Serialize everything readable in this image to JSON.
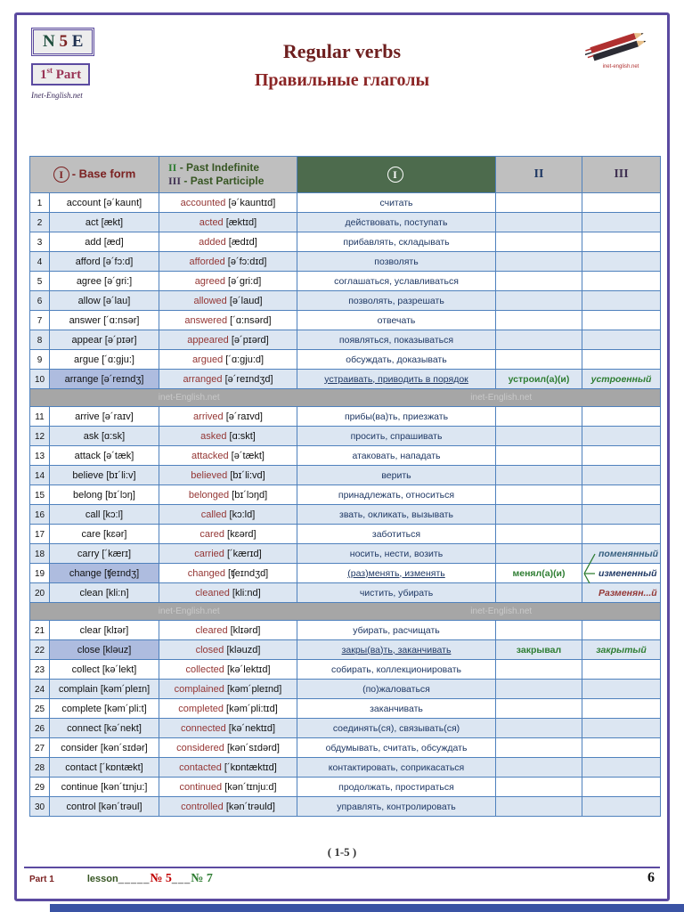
{
  "header": {
    "badge_code": {
      "n": "N",
      "num": "5",
      "e": "E"
    },
    "badge_part": {
      "num": "1",
      "sup": "st",
      "word": "Part"
    },
    "signature": "Inet-English.net",
    "title_en": "Regular verbs",
    "title_ru": "Правильные глаголы"
  },
  "table": {
    "header": {
      "col1_symbol": "I",
      "col1_label": "- Base form",
      "col2_line1_num": "II",
      "col2_line1_text": "- Past Indefinite",
      "col2_line2_num": "III",
      "col2_line2_text": "- Past Participle",
      "col3_symbol": "I",
      "col4": "II",
      "col5": "III"
    },
    "separator_text": "inet-English.net",
    "rows": [
      {
        "n": 1,
        "base": "account",
        "btr": "[ə´kaunt]",
        "past": "accounted",
        "ptr": "[ə´kauntɪd]",
        "ru": "считать"
      },
      {
        "n": 2,
        "base": "act",
        "btr": "[ækt]",
        "past": "acted",
        "ptr": "[æktɪd]",
        "ru": "действовать, поступать"
      },
      {
        "n": 3,
        "base": "add",
        "btr": "[æd]",
        "past": "added",
        "ptr": "[ædɪd]",
        "ru": "прибавлять, складывать"
      },
      {
        "n": 4,
        "base": "afford",
        "btr": "[ə´fɔ:d]",
        "past": "afforded",
        "ptr": "[ə´fɔ:dɪd]",
        "ru": "позволять"
      },
      {
        "n": 5,
        "base": "agree",
        "btr": "[ə´gri:]",
        "past": "agreed",
        "ptr": "[ə´gri:d]",
        "ru": "соглашаться, уславливаться"
      },
      {
        "n": 6,
        "base": "allow",
        "btr": "[ə´lau]",
        "past": "allowed",
        "ptr": "[ə´laud]",
        "ru": "позволять, разрешать"
      },
      {
        "n": 7,
        "base": "answer",
        "btr": "[´ɑ:nsər]",
        "past": "answered",
        "ptr": "[´ɑ:nsərd]",
        "ru": "отвечать"
      },
      {
        "n": 8,
        "base": "appear",
        "btr": "[ə´pɪər]",
        "past": "appeared",
        "ptr": "[ə´pɪərd]",
        "ru": "появляться, показываться"
      },
      {
        "n": 9,
        "base": "argue",
        "btr": "[´ɑ:gju:]",
        "past": "argued",
        "ptr": "[´ɑ:gju:d]",
        "ru": "обсуждать, доказывать"
      },
      {
        "n": 10,
        "base": "arrange",
        "btr": "[ə´reɪndʒ]",
        "past": "arranged",
        "ptr": "[ə´reɪndʒd]",
        "ru": "устраивать, приводить в порядок",
        "ru_u": true,
        "hl": true,
        "ii": "устроил(а)(и)",
        "iii": "устроенный",
        "iii_class": "part-green"
      },
      {
        "sep": true
      },
      {
        "n": 11,
        "base": "arrive",
        "btr": "[ə´raɪv]",
        "past": "arrived",
        "ptr": "[ə´raɪvd]",
        "ru": "прибы(ва)ть, приезжать"
      },
      {
        "n": 12,
        "base": "ask",
        "btr": "[ɑ:sk]",
        "past": "asked",
        "ptr": "[ɑ:skt]",
        "ru": "просить, спрашивать"
      },
      {
        "n": 13,
        "base": "attack",
        "btr": "[ə´tæk]",
        "past": "attacked",
        "ptr": "[ə´tækt]",
        "ru": "атаковать, нападать"
      },
      {
        "n": 14,
        "base": "believe",
        "btr": "[bɪ´li:v]",
        "past": "believed",
        "ptr": "[bɪ´li:vd]",
        "ru": "верить"
      },
      {
        "n": 15,
        "base": "belong",
        "btr": "[bɪ´lɔŋ]",
        "past": "belonged",
        "ptr": "[bɪ´lɔŋd]",
        "ru": "принадлежать, относиться"
      },
      {
        "n": 16,
        "base": "call",
        "btr": "[kɔ:l]",
        "past": "called",
        "ptr": "[kɔ:ld]",
        "ru": "звать, окликать, вызывать"
      },
      {
        "n": 17,
        "base": "care",
        "btr": "[kɛər]",
        "past": "cared",
        "ptr": "[kɛərd]",
        "ru": "заботиться"
      },
      {
        "n": 18,
        "base": "carry",
        "btr": "[´kærɪ]",
        "past": "carried",
        "ptr": "[´kærɪd]",
        "ru": "носить, нести, возить",
        "iii": "поменянный",
        "iii_class": "part-a",
        "pad": true
      },
      {
        "n": 19,
        "base": "change",
        "btr": "[ʧeɪndʒ]",
        "past": "changed",
        "ptr": "[ʧeɪndʒd]",
        "ru": "(раз)менять, изменять",
        "ru_u": true,
        "hl": true,
        "ii": "менял(а)(и)",
        "iii": "измененный",
        "iii_class": "part-b",
        "pad": true,
        "brace": true
      },
      {
        "n": 20,
        "base": "clean",
        "btr": "[kli:n]",
        "past": "cleaned",
        "ptr": "[kli:nd]",
        "ru": "чистить, убирать",
        "iii": "Разменян...й",
        "iii_class": "part-c",
        "pad": true
      },
      {
        "sep": true
      },
      {
        "n": 21,
        "base": "clear",
        "btr": "[klɪər]",
        "past": "cleared",
        "ptr": "[klɪərd]",
        "ru": "убирать, расчищать"
      },
      {
        "n": 22,
        "base": "close",
        "btr": "[kləuz]",
        "past": "closed",
        "ptr": "[kləuzd]",
        "ru": "закры(ва)ть, заканчивать",
        "ru_u": true,
        "hl": true,
        "ii": "закрывал",
        "iii": "закрытый",
        "iii_class": "part-green"
      },
      {
        "n": 23,
        "base": "collect",
        "btr": "[kə´lekt]",
        "past": "collected",
        "ptr": "[kə´lektɪd]",
        "ru": "собирать, коллекционировать"
      },
      {
        "n": 24,
        "base": "complain",
        "btr": "[kəm´pleɪn]",
        "past": "complained",
        "ptr": "[kəm´pleɪnd]",
        "ru": "(по)жаловаться"
      },
      {
        "n": 25,
        "base": "complete",
        "btr": "[kəm´pli:t]",
        "past": "completed",
        "ptr": "[kəm´pli:tɪd]",
        "ru": "заканчивать"
      },
      {
        "n": 26,
        "base": "connect",
        "btr": "[kə´nekt]",
        "past": "connected",
        "ptr": "[kə´nektɪd]",
        "ru": "соединять(ся), связывать(ся)"
      },
      {
        "n": 27,
        "base": "consider",
        "btr": "[kən´sɪdər]",
        "past": "considered",
        "ptr": "[kən´sɪdərd]",
        "ru": "обдумывать, считать, обсуждать"
      },
      {
        "n": 28,
        "base": "contact",
        "btr": "[´kɒntækt]",
        "past": "contacted",
        "ptr": "[´kɒntæktɪd]",
        "ru": "контактировать, соприкасаться"
      },
      {
        "n": 29,
        "base": "continue",
        "btr": "[kən´tɪnju:]",
        "past": "continued",
        "ptr": "[kən´tɪnju:d]",
        "ru": "продолжать, простираться"
      },
      {
        "n": 30,
        "base": "control",
        "btr": "[kən´trəul]",
        "past": "controlled",
        "ptr": "[kən´trəuld]",
        "ru": "управлять, контролировать"
      }
    ]
  },
  "footer": {
    "pagination": "( 1-5 )",
    "part": "Part 1",
    "lesson_label": "lesson",
    "blank1": "_____",
    "no5": "№ 5",
    "blank2": "___",
    "no7": "№ 7",
    "page": "6"
  },
  "colors": {
    "frame": "#5b4aa0",
    "title": "#6e1f1f",
    "grid": "#4f81bd",
    "row_alt": "#dce6f2",
    "highlight": "#aebcdf",
    "header_gray": "#bfbfbf",
    "header_green": "#4d6b4d",
    "past_word": "#943634",
    "russian": "#1f3864",
    "green_verb": "#2e7d32"
  }
}
